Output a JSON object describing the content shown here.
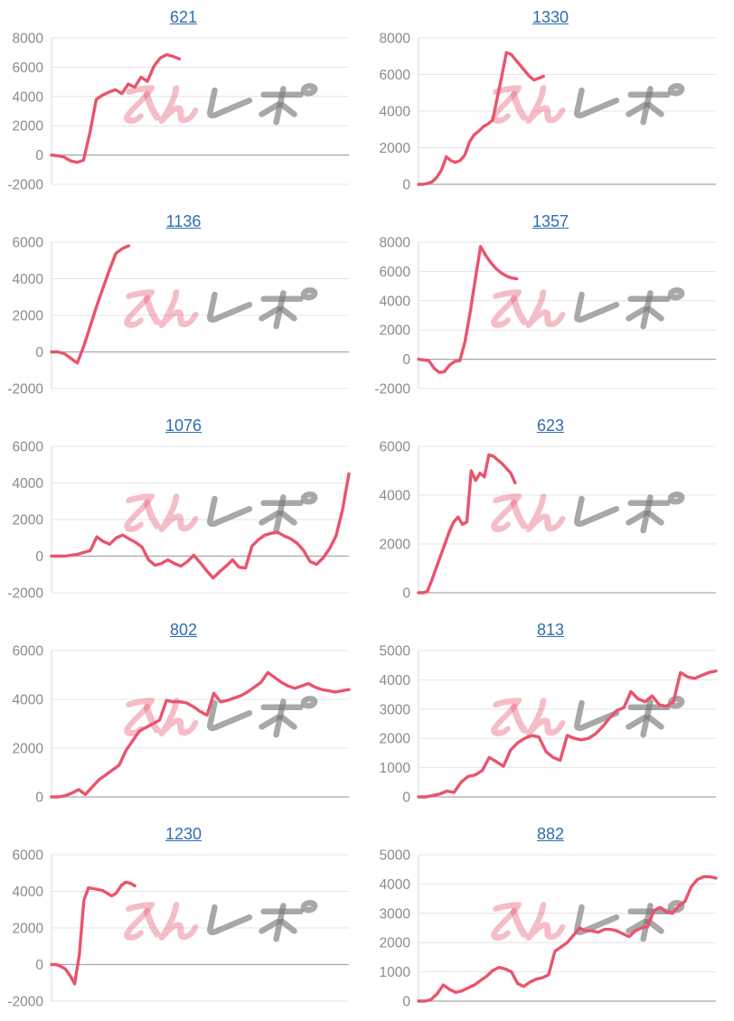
{
  "watermark": {
    "text": "みんレポ",
    "pink_text": "みん",
    "gray_text": "レポ"
  },
  "colors": {
    "line": "#e9546c",
    "grid": "#e4e4e4",
    "zero_line": "#a6a6a6",
    "axis_line": "#d9d9d9",
    "tick_label": "#8a8a8a",
    "title_link": "#2e6db4",
    "watermark_pink": "rgba(231,91,112,0.40)",
    "watermark_gray": "rgba(122,122,122,0.65)"
  },
  "chart_data": [
    {
      "type": "line",
      "title": "621",
      "xlabel": "",
      "ylabel": "",
      "ylim": [
        -2000,
        8000
      ],
      "yticks": [
        "8000",
        "6000",
        "4000",
        "2000",
        "0",
        "-2000"
      ],
      "grid": true,
      "legend": false,
      "span": 0.43,
      "values": [
        0,
        -50,
        -150,
        -400,
        -500,
        -350,
        1500,
        3800,
        4100,
        4300,
        4460,
        4200,
        4850,
        4630,
        5320,
        5030,
        6060,
        6630,
        6860,
        6740,
        6570
      ]
    },
    {
      "type": "line",
      "title": "1330",
      "xlabel": "",
      "ylabel": "",
      "ylim": [
        0,
        8000
      ],
      "yticks": [
        "8000",
        "6000",
        "4000",
        "2000",
        "0"
      ],
      "grid": true,
      "legend": false,
      "span": 0.42,
      "values": [
        0,
        0,
        50,
        150,
        400,
        800,
        1500,
        1300,
        1200,
        1300,
        1600,
        2300,
        2700,
        2900,
        3150,
        3300,
        3500,
        4700,
        5900,
        7200,
        7100,
        6800,
        6500,
        6200,
        5900,
        5700,
        5800,
        5900
      ]
    },
    {
      "type": "line",
      "title": "1136",
      "xlabel": "",
      "ylabel": "",
      "ylim": [
        -2000,
        6000
      ],
      "yticks": [
        "6000",
        "4000",
        "2000",
        "0",
        "-2000"
      ],
      "grid": true,
      "legend": false,
      "span": 0.26,
      "values": [
        0,
        0,
        -100,
        -350,
        -600,
        300,
        1400,
        2500,
        3500,
        4500,
        5400,
        5650,
        5800
      ]
    },
    {
      "type": "line",
      "title": "1357",
      "xlabel": "",
      "ylabel": "",
      "ylim": [
        -2000,
        8000
      ],
      "yticks": [
        "8000",
        "6000",
        "4000",
        "2000",
        "0",
        "-2000"
      ],
      "grid": true,
      "legend": false,
      "span": 0.33,
      "values": [
        0,
        -50,
        -100,
        -600,
        -900,
        -850,
        -400,
        -150,
        -100,
        1200,
        3200,
        5500,
        7700,
        7100,
        6600,
        6200,
        5900,
        5700,
        5550,
        5500
      ]
    },
    {
      "type": "line",
      "title": "1076",
      "xlabel": "",
      "ylabel": "",
      "ylim": [
        -2000,
        6000
      ],
      "yticks": [
        "6000",
        "4000",
        "2000",
        "0",
        "-2000"
      ],
      "grid": true,
      "legend": false,
      "span": 1.0,
      "values": [
        0,
        0,
        0,
        50,
        100,
        200,
        300,
        1050,
        800,
        650,
        1000,
        1150,
        950,
        750,
        500,
        -200,
        -500,
        -400,
        -200,
        -400,
        -550,
        -300,
        50,
        -350,
        -800,
        -1200,
        -850,
        -550,
        -200,
        -600,
        -650,
        550,
        900,
        1150,
        1250,
        1300,
        1100,
        950,
        700,
        300,
        -300,
        -450,
        -100,
        400,
        1100,
        2500,
        4500
      ]
    },
    {
      "type": "line",
      "title": "623",
      "xlabel": "",
      "ylabel": "",
      "ylim": [
        0,
        6000
      ],
      "yticks": [
        "6000",
        "4000",
        "2000",
        "0"
      ],
      "grid": true,
      "legend": false,
      "span": 0.325,
      "values": [
        0,
        0,
        50,
        500,
        1000,
        1500,
        2000,
        2500,
        2900,
        3100,
        2800,
        2900,
        5000,
        4600,
        4900,
        4750,
        5650,
        5600,
        5450,
        5300,
        5100,
        4900,
        4500
      ]
    },
    {
      "type": "line",
      "title": "802",
      "xlabel": "",
      "ylabel": "",
      "ylim": [
        0,
        6000
      ],
      "yticks": [
        "6000",
        "4000",
        "2000",
        "0"
      ],
      "grid": true,
      "legend": false,
      "span": 1.0,
      "values": [
        0,
        0,
        50,
        150,
        300,
        100,
        400,
        700,
        900,
        1100,
        1300,
        1900,
        2300,
        2700,
        2850,
        3000,
        3150,
        3950,
        3900,
        3900,
        3850,
        3700,
        3500,
        3350,
        4250,
        3900,
        3950,
        4050,
        4150,
        4300,
        4500,
        4700,
        5100,
        4900,
        4700,
        4550,
        4450,
        4550,
        4650,
        4500,
        4400,
        4350,
        4300,
        4350,
        4400
      ]
    },
    {
      "type": "line",
      "title": "813",
      "xlabel": "",
      "ylabel": "",
      "ylim": [
        0,
        5000
      ],
      "yticks": [
        "5000",
        "4000",
        "3000",
        "2000",
        "1000",
        "0"
      ],
      "grid": true,
      "legend": false,
      "span": 1.0,
      "values": [
        0,
        0,
        50,
        100,
        200,
        150,
        500,
        700,
        750,
        900,
        1350,
        1200,
        1050,
        1600,
        1850,
        2000,
        2100,
        2050,
        1550,
        1350,
        1250,
        2100,
        2000,
        1950,
        2000,
        2150,
        2400,
        2700,
        2950,
        3050,
        3600,
        3350,
        3250,
        3450,
        3150,
        3100,
        3250,
        4250,
        4100,
        4050,
        4150,
        4250,
        4300
      ]
    },
    {
      "type": "line",
      "title": "1230",
      "xlabel": "",
      "ylabel": "",
      "ylim": [
        -2000,
        6000
      ],
      "yticks": [
        "6000",
        "4000",
        "2000",
        "0",
        "-2000"
      ],
      "grid": true,
      "legend": false,
      "span": 0.28,
      "values": [
        0,
        0,
        -100,
        -250,
        -600,
        -1050,
        500,
        3500,
        4200,
        4150,
        4100,
        4050,
        3900,
        3750,
        3900,
        4300,
        4500,
        4450,
        4300
      ]
    },
    {
      "type": "line",
      "title": "882",
      "xlabel": "",
      "ylabel": "",
      "ylim": [
        0,
        5000
      ],
      "yticks": [
        "5000",
        "4000",
        "3000",
        "2000",
        "1000",
        "0"
      ],
      "grid": true,
      "legend": false,
      "span": 1.0,
      "values": [
        0,
        0,
        50,
        250,
        550,
        400,
        300,
        350,
        450,
        550,
        700,
        850,
        1050,
        1150,
        1100,
        1000,
        600,
        500,
        650,
        750,
        800,
        900,
        1700,
        1850,
        2000,
        2250,
        2500,
        2400,
        2400,
        2350,
        2450,
        2450,
        2400,
        2300,
        2200,
        2400,
        2500,
        2550,
        3100,
        3200,
        3050,
        3000,
        3250,
        3400,
        3900,
        4150,
        4250,
        4250,
        4200
      ]
    }
  ]
}
